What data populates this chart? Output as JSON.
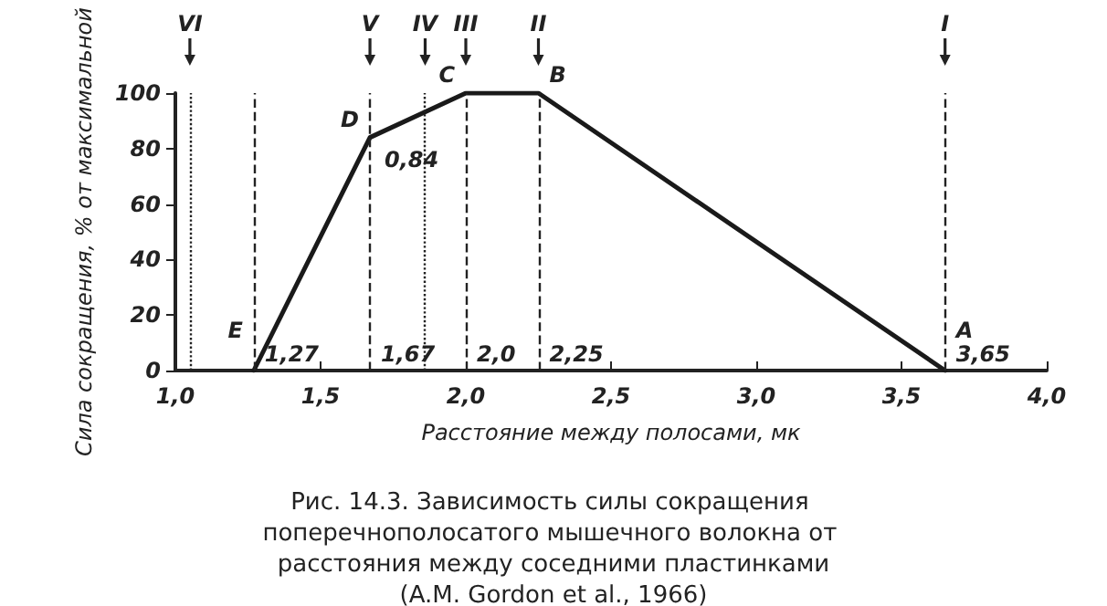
{
  "chart_data": {
    "type": "line",
    "title": "Рис. 14.3. Зависимость силы сокращения поперечнополосатого мышечного волокна от расстояния между соседними пластинками",
    "subtitle": "(A.M. Gordon et al., 1966)",
    "xlabel": "Расстояние между полосами, мк",
    "ylabel": "Сила сокращения, % от максимальной",
    "x": [
      1.27,
      1.67,
      2.0,
      2.25,
      3.65
    ],
    "series": [
      {
        "color": "#1a1a1a",
        "values": [
          0,
          84,
          100,
          100,
          0
        ]
      }
    ],
    "xlim": [
      1.0,
      4.0
    ],
    "xticks": [
      {
        "value": 1.0,
        "label": "1,0"
      },
      {
        "value": 1.5,
        "label": "1,5"
      },
      {
        "value": 2.0,
        "label": "2,0"
      },
      {
        "value": 2.5,
        "label": "2,5"
      },
      {
        "value": 3.0,
        "label": "3,0"
      },
      {
        "value": 3.5,
        "label": "3,5"
      },
      {
        "value": 4.0,
        "label": "4,0"
      }
    ],
    "ylim": [
      0,
      100
    ],
    "yticks": [
      0,
      20,
      40,
      60,
      80,
      100
    ],
    "grid": false,
    "marker": "none",
    "line_style": "solid",
    "ref_lines": [
      {
        "axis": "x",
        "value": 1.27,
        "line_style": "dashed"
      },
      {
        "axis": "x",
        "value": 1.05,
        "label": "VI",
        "line_style": "dotted"
      },
      {
        "axis": "x",
        "value": 1.67,
        "label": "V",
        "line_style": "dashed"
      },
      {
        "axis": "x",
        "value": 1.86,
        "label": "IV",
        "line_style": "dotted"
      },
      {
        "axis": "x",
        "value": 2.0,
        "label": "III",
        "line_style": "dashed"
      },
      {
        "axis": "x",
        "value": 2.25,
        "label": "II",
        "line_style": "dashed"
      },
      {
        "axis": "x",
        "value": 3.65,
        "label": "I",
        "line_style": "dashed"
      }
    ],
    "annotations": [
      {
        "text": "E",
        "x": 1.27,
        "y": 0
      },
      {
        "text": "1,27",
        "x": 1.27,
        "y": 0
      },
      {
        "text": "D",
        "x": 1.67,
        "y": 84
      },
      {
        "text": "0,84",
        "x": 1.67,
        "y": 84
      },
      {
        "text": "1,67",
        "x": 1.67,
        "y": 0
      },
      {
        "text": "C",
        "x": 2.0,
        "y": 100
      },
      {
        "text": "2,0",
        "x": 2.0,
        "y": 0
      },
      {
        "text": "B",
        "x": 2.25,
        "y": 100
      },
      {
        "text": "2,25",
        "x": 2.25,
        "y": 0
      },
      {
        "text": "A",
        "x": 3.65,
        "y": 0
      },
      {
        "text": "3,65",
        "x": 3.65,
        "y": 0
      }
    ]
  }
}
